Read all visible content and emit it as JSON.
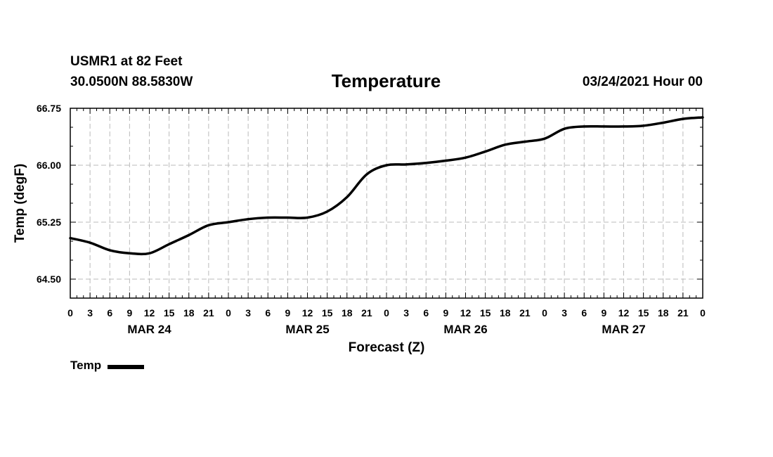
{
  "header": {
    "station": "USMR1 at 82 Feet",
    "coords": "30.0500N 88.5830W",
    "title": "Temperature",
    "datetime": "03/24/2021 Hour 00"
  },
  "legend": {
    "label": "Temp"
  },
  "colors": {
    "line": "#000000",
    "grid": "#bbbbbb",
    "axis": "#000000"
  },
  "chart_data": {
    "type": "line",
    "title": "Temperature",
    "xlabel": "Forecast (Z)",
    "ylabel": "Temp (degF)",
    "xlim": [
      0,
      96
    ],
    "ylim": [
      64.25,
      66.75
    ],
    "grid": true,
    "legend_position": "bottom-left",
    "x_tick_values": [
      0,
      3,
      6,
      9,
      12,
      15,
      18,
      21,
      24,
      27,
      30,
      33,
      36,
      39,
      42,
      45,
      48,
      51,
      54,
      57,
      60,
      63,
      66,
      69,
      72,
      75,
      78,
      81,
      84,
      87,
      90,
      93,
      96
    ],
    "x_tick_labels": [
      "0",
      "3",
      "6",
      "9",
      "12",
      "15",
      "18",
      "21",
      "0",
      "3",
      "6",
      "9",
      "12",
      "15",
      "18",
      "21",
      "0",
      "3",
      "6",
      "9",
      "12",
      "15",
      "18",
      "21",
      "0",
      "3",
      "6",
      "9",
      "12",
      "15",
      "18",
      "21",
      "0"
    ],
    "date_labels": [
      {
        "x": 12,
        "label": "MAR 24"
      },
      {
        "x": 36,
        "label": "MAR 25"
      },
      {
        "x": 60,
        "label": "MAR 26"
      },
      {
        "x": 84,
        "label": "MAR 27"
      }
    ],
    "y_tick_values": [
      64.5,
      65.25,
      66.0,
      66.75
    ],
    "y_tick_labels": [
      "64.50",
      "65.25",
      "66.00",
      "66.75"
    ],
    "series": [
      {
        "name": "Temp",
        "x": [
          0,
          3,
          6,
          9,
          12,
          15,
          18,
          21,
          24,
          27,
          30,
          33,
          36,
          39,
          42,
          45,
          48,
          51,
          54,
          57,
          60,
          63,
          66,
          69,
          72,
          75,
          78,
          81,
          84,
          87,
          90,
          93,
          96
        ],
        "values": [
          65.04,
          64.98,
          64.88,
          64.84,
          64.84,
          64.96,
          65.08,
          65.21,
          65.25,
          65.29,
          65.31,
          65.31,
          65.31,
          65.39,
          65.58,
          65.88,
          66.0,
          66.01,
          66.03,
          66.06,
          66.1,
          66.18,
          66.27,
          66.31,
          66.35,
          66.48,
          66.51,
          66.51,
          66.51,
          66.52,
          66.56,
          66.61,
          66.63
        ]
      }
    ]
  }
}
